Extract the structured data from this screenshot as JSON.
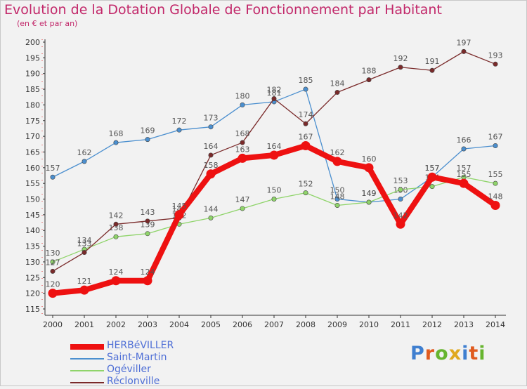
{
  "title": "Evolution de la Dotation Globale de Fonctionnement par Habitant",
  "subtitle": "(en € et par an)",
  "logo": {
    "text": "Proxiti",
    "colors": [
      "#3f7fd0",
      "#e05a1e",
      "#67b52f",
      "#e0a91e",
      "#3f7fd0",
      "#e05a1e",
      "#67b52f"
    ]
  },
  "chart_data": {
    "type": "line",
    "x": [
      2000,
      2001,
      2002,
      2003,
      2004,
      2005,
      2006,
      2007,
      2008,
      2009,
      2010,
      2011,
      2012,
      2013,
      2014
    ],
    "ylim": [
      115,
      200
    ],
    "yticks": [
      115,
      120,
      125,
      130,
      135,
      140,
      145,
      150,
      155,
      160,
      165,
      170,
      175,
      180,
      185,
      190,
      195,
      200
    ],
    "grid": false,
    "legend_position": "bottom-left",
    "series": [
      {
        "name": "Saint-Martin",
        "color": "#4b8fcf",
        "values": [
          157,
          162,
          168,
          169,
          172,
          173,
          180,
          181,
          185,
          150,
          149,
          150,
          157,
          166,
          167
        ]
      },
      {
        "name": "Ogéviller",
        "color": "#8fd46a",
        "values": [
          130,
          134,
          138,
          139,
          142,
          144,
          147,
          150,
          152,
          148,
          149,
          153,
          154,
          157,
          155
        ]
      },
      {
        "name": "Réclonville",
        "color": "#7a2a2a",
        "values": [
          127,
          133,
          142,
          143,
          144,
          164,
          168,
          182,
          174,
          184,
          188,
          192,
          191,
          197,
          193
        ]
      },
      {
        "name": "HERBéVILLER",
        "color": "#ee1111",
        "values": [
          120,
          121,
          124,
          124,
          145,
          158,
          163,
          164,
          167,
          162,
          160,
          142,
          157,
          155,
          148
        ]
      }
    ],
    "legend_order": [
      "HERBéVILLER",
      "Saint-Martin",
      "Ogéviller",
      "Réclonville"
    ]
  }
}
